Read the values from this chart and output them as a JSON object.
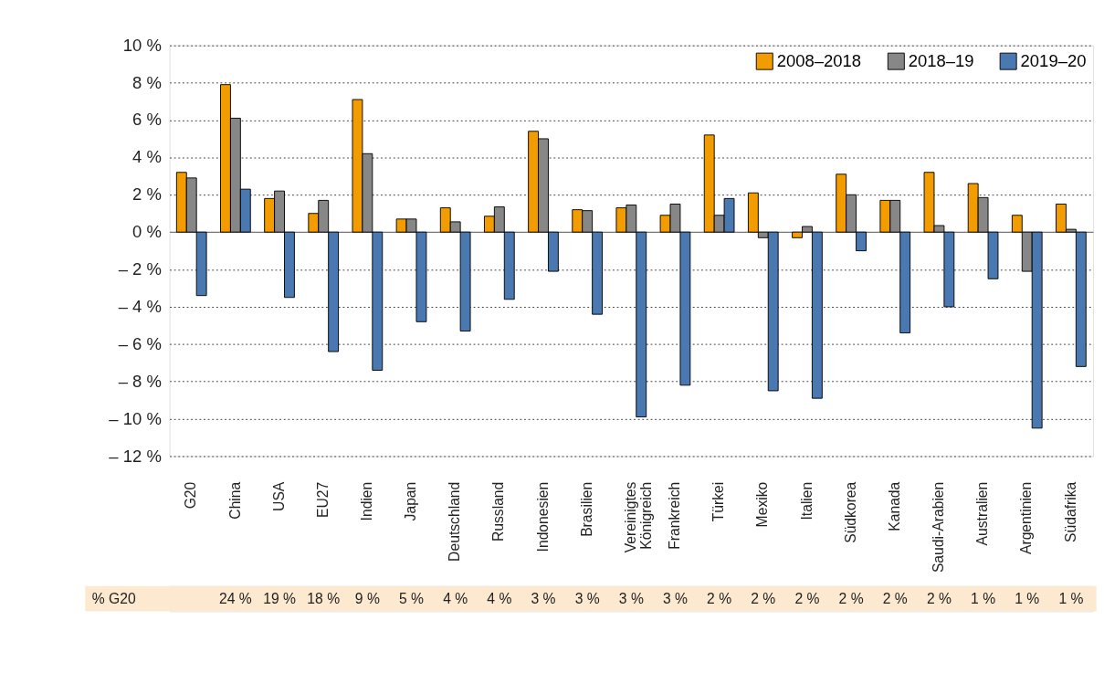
{
  "chart_data": {
    "type": "bar",
    "categories": [
      "G20",
      "China",
      "USA",
      "EU27",
      "Indien",
      "Japan",
      "Deutschland",
      "Russland",
      "Indonesien",
      "Brasilien",
      "Vereinigtes Königreich",
      "Frankreich",
      "Türkei",
      "Mexiko",
      "Italien",
      "Südkorea",
      "Kanada",
      "Saudi-Arabien",
      "Australien",
      "Argentinien",
      "Südafrika"
    ],
    "series": [
      {
        "name": "2008–2018",
        "color": "#f39c00",
        "values": [
          3.2,
          7.9,
          1.8,
          1.0,
          7.1,
          0.7,
          1.3,
          0.85,
          5.4,
          1.2,
          1.3,
          0.9,
          5.2,
          2.1,
          -0.3,
          3.1,
          1.7,
          3.2,
          2.6,
          0.9,
          1.5
        ]
      },
      {
        "name": "2018–19",
        "color": "#878787",
        "values": [
          2.9,
          6.1,
          2.2,
          1.7,
          4.2,
          0.7,
          0.55,
          1.35,
          5.0,
          1.15,
          1.45,
          1.5,
          0.9,
          -0.3,
          0.3,
          2.0,
          1.7,
          0.35,
          1.85,
          -2.1,
          0.15
        ]
      },
      {
        "name": "2019–20",
        "color": "#4a78b0",
        "values": [
          -3.4,
          2.3,
          -3.5,
          -6.4,
          -7.4,
          -4.8,
          -5.3,
          -3.6,
          -2.1,
          -4.4,
          -9.9,
          -8.2,
          1.8,
          -8.5,
          -8.9,
          -1.0,
          -5.4,
          -4.0,
          -2.5,
          -10.5,
          -7.2
        ]
      }
    ],
    "ylim": [
      -12,
      10
    ],
    "yticks": [
      {
        "value": -12,
        "label": "– 12 %"
      },
      {
        "value": -10,
        "label": "– 10 %"
      },
      {
        "value": -8,
        "label": "– 8 %"
      },
      {
        "value": -6,
        "label": "– 6 %"
      },
      {
        "value": -4,
        "label": "– 4 %"
      },
      {
        "value": -2,
        "label": "– 2 %"
      },
      {
        "value": 0,
        "label": "0 %"
      },
      {
        "value": 2,
        "label": "2 %"
      },
      {
        "value": 4,
        "label": "4 %"
      },
      {
        "value": 6,
        "label": "6 %"
      },
      {
        "value": 8,
        "label": "8 %"
      },
      {
        "value": 10,
        "label": "10 %"
      }
    ],
    "grid": "y",
    "legend": "top right",
    "annotations": [
      "% G20",
      "24 %",
      "19 %",
      "18 %",
      "9 %",
      "5 %",
      "4 %",
      "4 %",
      "3 %",
      "3 %",
      "3 %",
      "3 %",
      "2 %",
      "2 %",
      "2 %",
      "2 %",
      "2 %",
      "2 %",
      "1 %",
      "1 %",
      "1 %"
    ]
  }
}
